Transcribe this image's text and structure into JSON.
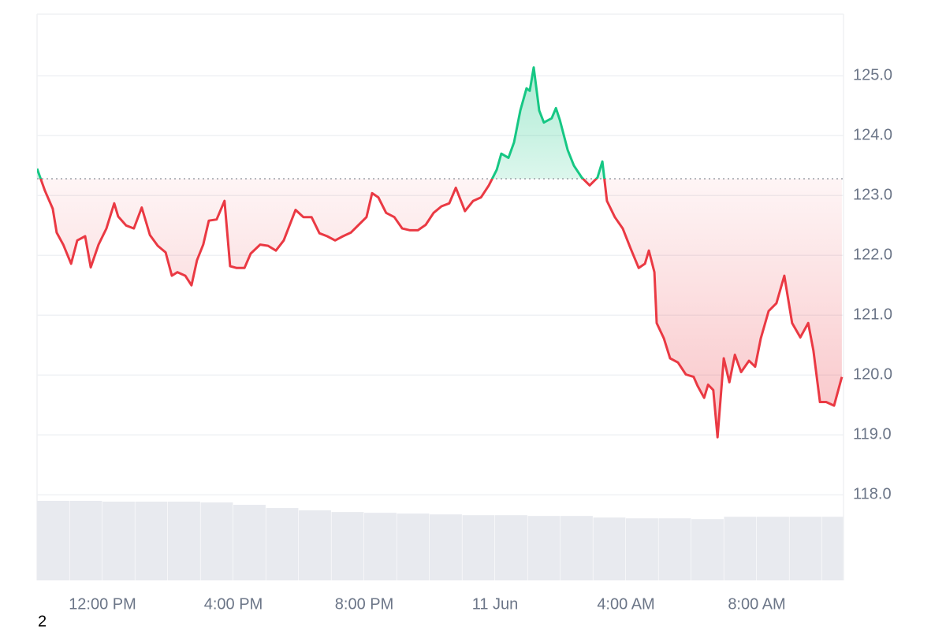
{
  "chart_data": {
    "type": "line",
    "footer": "2",
    "baseline": 123.28,
    "up_color": "#16c784",
    "down_color": "#ea3943",
    "x": [
      10.0,
      10.24,
      10.48,
      10.6,
      10.8,
      11.04,
      11.23,
      11.47,
      11.64,
      11.88,
      12.12,
      12.36,
      12.48,
      12.72,
      12.96,
      13.2,
      13.45,
      13.69,
      13.93,
      14.12,
      14.29,
      14.53,
      14.72,
      14.89,
      15.08,
      15.25,
      15.49,
      15.73,
      15.9,
      16.1,
      16.34,
      16.53,
      16.82,
      17.06,
      17.3,
      17.54,
      17.9,
      18.14,
      18.39,
      18.63,
      18.87,
      19.11,
      19.35,
      19.59,
      19.83,
      20.07,
      20.24,
      20.43,
      20.67,
      20.92,
      21.16,
      21.4,
      21.64,
      21.88,
      22.12,
      22.36,
      22.6,
      22.8,
      23.08,
      23.33,
      23.57,
      23.81,
      24.05,
      24.19,
      24.41,
      24.58,
      24.77,
      24.96,
      25.06,
      25.18,
      25.35,
      25.49,
      25.73,
      25.86,
      25.98,
      26.22,
      26.41,
      26.65,
      26.89,
      27.13,
      27.28,
      27.42,
      27.66,
      27.9,
      28.14,
      28.39,
      28.58,
      28.7,
      28.87,
      28.94,
      29.16,
      29.35,
      29.59,
      29.83,
      30.07,
      30.19,
      30.39,
      30.51,
      30.67,
      30.8,
      30.99,
      31.16,
      31.33,
      31.52,
      31.76,
      31.95,
      32.12,
      32.36,
      32.6,
      32.84,
      33.08,
      33.33,
      33.57,
      33.73,
      33.93,
      34.12,
      34.36,
      34.6
    ],
    "values": [
      123.45,
      123.08,
      122.78,
      122.38,
      122.18,
      121.86,
      122.25,
      122.32,
      121.8,
      122.18,
      122.45,
      122.87,
      122.65,
      122.5,
      122.45,
      122.8,
      122.34,
      122.16,
      122.05,
      121.66,
      121.72,
      121.66,
      121.5,
      121.92,
      122.18,
      122.58,
      122.6,
      122.91,
      121.82,
      121.79,
      121.79,
      122.03,
      122.18,
      122.16,
      122.08,
      122.25,
      122.76,
      122.64,
      122.64,
      122.37,
      122.32,
      122.25,
      122.32,
      122.38,
      122.51,
      122.64,
      123.04,
      122.97,
      122.71,
      122.64,
      122.45,
      122.42,
      122.42,
      122.51,
      122.71,
      122.82,
      122.87,
      123.13,
      122.74,
      122.91,
      122.97,
      123.17,
      123.43,
      123.7,
      123.63,
      123.89,
      124.42,
      124.79,
      124.75,
      125.14,
      124.42,
      124.22,
      124.29,
      124.46,
      124.26,
      123.76,
      123.5,
      123.3,
      123.17,
      123.3,
      123.57,
      122.91,
      122.64,
      122.45,
      122.12,
      121.79,
      121.86,
      122.08,
      121.72,
      120.87,
      120.61,
      120.28,
      120.21,
      120.01,
      119.97,
      119.82,
      119.62,
      119.84,
      119.75,
      118.96,
      120.28,
      119.88,
      120.34,
      120.05,
      120.24,
      120.14,
      120.61,
      121.07,
      121.2,
      121.66,
      120.87,
      120.63,
      120.87,
      120.41,
      119.55,
      119.55,
      119.49,
      119.97
    ],
    "xlim": [
      10,
      34.65
    ],
    "xticks": [
      {
        "value": 12,
        "label": "12:00 PM"
      },
      {
        "value": 16,
        "label": "4:00 PM"
      },
      {
        "value": 20,
        "label": "8:00 PM"
      },
      {
        "value": 24,
        "label": "11 Jun"
      },
      {
        "value": 28,
        "label": "4:00 AM"
      },
      {
        "value": 32,
        "label": "8:00 AM"
      }
    ],
    "ylim": [
      116.57,
      126.03
    ],
    "yticks": [
      {
        "value": 118,
        "label": "118.0"
      },
      {
        "value": 119,
        "label": "119.0"
      },
      {
        "value": 120,
        "label": "120.0"
      },
      {
        "value": 121,
        "label": "121.0"
      },
      {
        "value": 122,
        "label": "122.0"
      },
      {
        "value": 123,
        "label": "123.0"
      },
      {
        "value": 124,
        "label": "124.0"
      },
      {
        "value": 125,
        "label": "125.0"
      }
    ],
    "grid": true,
    "volume": {
      "color": "#e8eaef",
      "ylim": [
        0,
        100
      ],
      "x": [
        10,
        11,
        12,
        13,
        14,
        15,
        16,
        17,
        18,
        19,
        20,
        21,
        22,
        23,
        24,
        25,
        26,
        27,
        28,
        29,
        30,
        31,
        32,
        33,
        34
      ],
      "values": [
        100,
        100,
        99,
        99,
        99,
        98,
        95,
        91,
        88,
        86,
        85,
        84,
        83,
        82,
        82,
        81,
        81,
        79,
        78,
        78,
        77,
        80,
        80,
        80,
        80
      ]
    }
  }
}
